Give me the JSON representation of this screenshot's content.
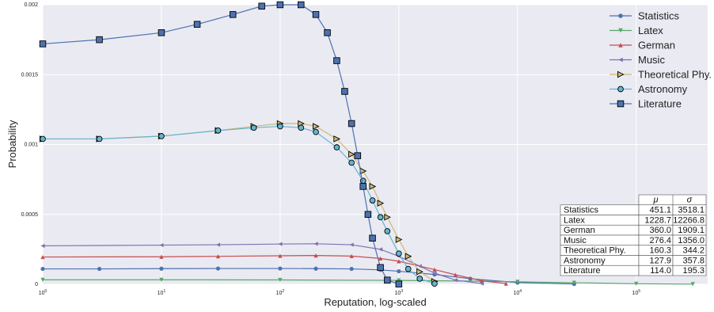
{
  "chart_data": {
    "type": "line",
    "xlabel": "Reputation, log-scaled",
    "ylabel": "Probability",
    "xscale": "log",
    "xlim": [
      1,
      400000
    ],
    "ylim": [
      0,
      0.002
    ],
    "grid": true,
    "legend_position": "top-right",
    "x_ticks": [
      {
        "value": 1,
        "base": "10",
        "exp": "0"
      },
      {
        "value": 10,
        "base": "10",
        "exp": "1"
      },
      {
        "value": 100,
        "base": "10",
        "exp": "2"
      },
      {
        "value": 1000,
        "base": "10",
        "exp": "3"
      },
      {
        "value": 10000,
        "base": "10",
        "exp": "4"
      },
      {
        "value": 100000,
        "base": "10",
        "exp": "5"
      }
    ],
    "y_ticks": [
      {
        "value": 0,
        "label": "0"
      },
      {
        "value": 0.0005,
        "label": "0.0005"
      },
      {
        "value": 0.001,
        "label": "0.001"
      },
      {
        "value": 0.0015,
        "label": "0.0015"
      },
      {
        "value": 0.002,
        "label": "0.002"
      }
    ],
    "series": [
      {
        "name": "Statistics",
        "color": "#4C72B0",
        "marker": "circle",
        "mu": 451.1,
        "sigma": 3518.1,
        "x": [
          1,
          3,
          10,
          30,
          100,
          200,
          400,
          700,
          1000,
          2000,
          4000,
          10000,
          30000
        ],
        "y": [
          0.00011,
          0.00011,
          0.000112,
          0.000113,
          0.000113,
          0.000112,
          0.00011,
          0.000103,
          9.3e-05,
          7e-05,
          4e-05,
          1.2e-05,
          2e-06
        ]
      },
      {
        "name": "Latex",
        "color": "#55A868",
        "marker": "triangle-down",
        "mu": 1228.7,
        "sigma": 12266.8,
        "x": [
          1,
          10,
          100,
          1000,
          5000,
          10000,
          30000,
          100000,
          300000
        ],
        "y": [
          3.2e-05,
          3.2e-05,
          3.1e-05,
          2.8e-05,
          2.2e-05,
          1.8e-05,
          1.1e-05,
          4e-06,
          1e-06
        ]
      },
      {
        "name": "German",
        "color": "#C44E52",
        "marker": "triangle-up",
        "mu": 360.0,
        "sigma": 1909.1,
        "x": [
          1,
          10,
          30,
          100,
          200,
          400,
          700,
          1000,
          2000,
          3000,
          5000,
          8000
        ],
        "y": [
          0.000195,
          0.000197,
          0.0002,
          0.000204,
          0.000206,
          0.000202,
          0.000185,
          0.000165,
          0.000105,
          6.8e-05,
          2.5e-05,
          5e-06
        ]
      },
      {
        "name": "Music",
        "color": "#8172B2",
        "marker": "triangle-left",
        "mu": 276.4,
        "sigma": 1356.0,
        "x": [
          1,
          10,
          30,
          100,
          200,
          400,
          700,
          1000,
          1500,
          2000,
          3000,
          5000
        ],
        "y": [
          0.000275,
          0.00028,
          0.000283,
          0.000288,
          0.00029,
          0.000283,
          0.00025,
          0.0002,
          0.00013,
          8e-05,
          3e-05,
          5e-06
        ]
      },
      {
        "name": "Theoretical Phy.",
        "color": "#CCB974",
        "marker": "triangle-right",
        "mu": 160.3,
        "sigma": 344.2,
        "x": [
          1,
          3,
          10,
          30,
          60,
          100,
          150,
          200,
          300,
          400,
          500,
          600,
          700,
          800,
          1000,
          1200,
          1500,
          2000
        ],
        "y": [
          0.00104,
          0.00104,
          0.00106,
          0.0011,
          0.00113,
          0.00115,
          0.00115,
          0.00113,
          0.00104,
          0.00093,
          0.00081,
          0.0007,
          0.00058,
          0.00048,
          0.00032,
          0.0002,
          9e-05,
          2e-05
        ]
      },
      {
        "name": "Astronomy",
        "color": "#64B5CD",
        "marker": "circle",
        "mu": 127.9,
        "sigma": 357.8,
        "x": [
          1,
          3,
          10,
          30,
          60,
          100,
          150,
          200,
          300,
          400,
          500,
          600,
          700,
          800,
          1000,
          1200,
          1500,
          2000
        ],
        "y": [
          0.00104,
          0.00104,
          0.00106,
          0.0011,
          0.00112,
          0.00113,
          0.00112,
          0.00109,
          0.00098,
          0.00087,
          0.00074,
          0.0006,
          0.00048,
          0.00038,
          0.00022,
          0.00011,
          4e-05,
          5e-06
        ]
      },
      {
        "name": "Literature",
        "color": "#4C72B0",
        "marker": "square",
        "mu": 114.0,
        "sigma": 195.3,
        "x": [
          1,
          3,
          10,
          20,
          40,
          70,
          100,
          150,
          200,
          250,
          300,
          350,
          400,
          450,
          500,
          550,
          600,
          700,
          800,
          1000
        ],
        "y": [
          0.00172,
          0.00175,
          0.0018,
          0.00186,
          0.00193,
          0.00199,
          0.002,
          0.002,
          0.00193,
          0.0018,
          0.0016,
          0.00138,
          0.00115,
          0.00092,
          0.0007,
          0.0005,
          0.00033,
          0.00012,
          3e-05,
          2e-06
        ]
      }
    ],
    "stats_table": {
      "headers": [
        "",
        "μ",
        "σ"
      ],
      "rows": [
        [
          "Statistics",
          "451.1",
          "3518.1"
        ],
        [
          "Latex",
          "1228.7",
          "12266.8"
        ],
        [
          "German",
          "360.0",
          "1909.1"
        ],
        [
          "Music",
          "276.4",
          "1356.0"
        ],
        [
          "Theoretical Phy.",
          "160.3",
          "344.2"
        ],
        [
          "Astronomy",
          "127.9",
          "357.8"
        ],
        [
          "Literature",
          "114.0",
          "195.3"
        ]
      ]
    }
  }
}
